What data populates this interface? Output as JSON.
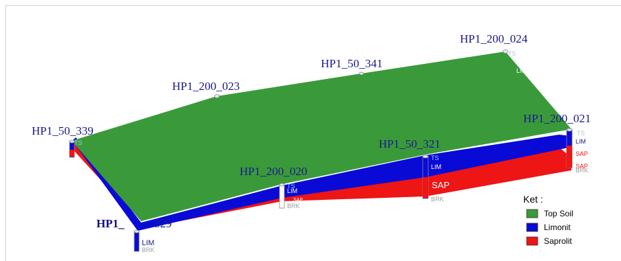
{
  "colors": {
    "top_soil": "#3a9a3a",
    "limonit": "#0a0ad6",
    "saprolit": "#ee1515",
    "label": "#1a1a8c"
  },
  "holes": {
    "hp1_200_024": "HP1_200_024",
    "hp1_50_341": "HP1_50_341",
    "hp1_200_023": "HP1_200_023",
    "hp1_50_339": "HP1_50_339",
    "hp1_200_021": "HP1_200_021",
    "hp1_50_321": "HP1_50_321",
    "hp1_200_020": "HP1_200_020",
    "hp1_329_partial": "HP1_",
    "hp1_329_suffix": "329"
  },
  "tags": {
    "ts": "TS",
    "lim": "LIM",
    "sap": "SAP",
    "brk": "BRK"
  },
  "legend": {
    "title": "Ket :",
    "items": [
      {
        "label": "Top Soil",
        "color": "#3a9a3a"
      },
      {
        "label": "Limonit",
        "color": "#0a0ad6"
      },
      {
        "label": "Saprolit",
        "color": "#ee1515"
      }
    ]
  }
}
